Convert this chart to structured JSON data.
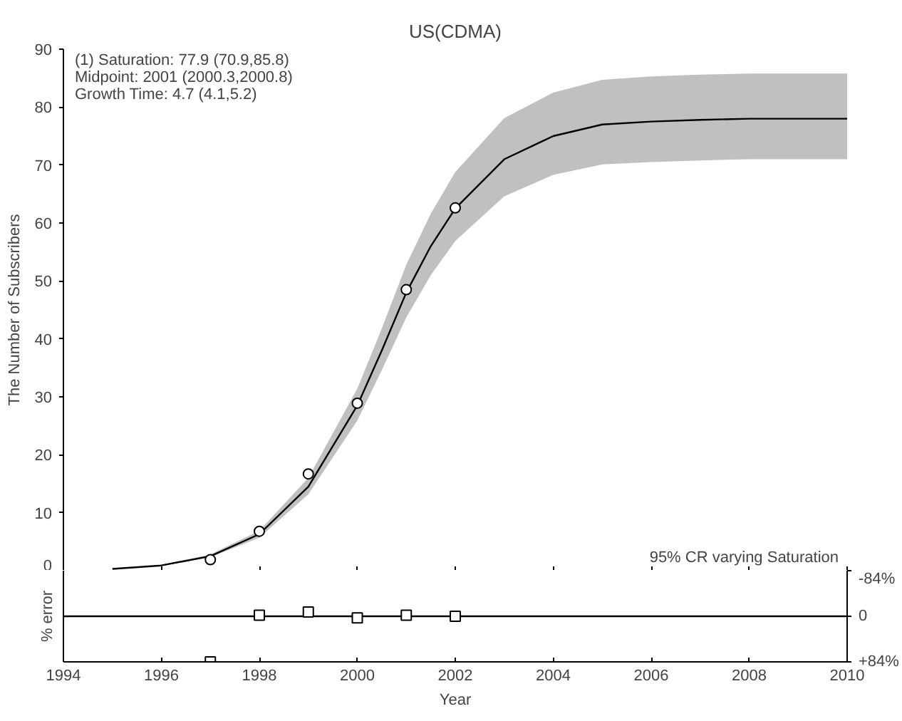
{
  "chart_data": [
    {
      "type": "line",
      "title": "US(CDMA)",
      "ylabel": "The Number of Subscribers",
      "xlim": [
        1994,
        2010
      ],
      "xticks": [
        1994,
        1996,
        1998,
        2000,
        2002,
        2004,
        2006,
        2008,
        2010
      ],
      "ylim": [
        0,
        90
      ],
      "yticks": [
        0,
        10,
        20,
        30,
        40,
        50,
        60,
        70,
        80,
        90
      ],
      "tick_labels": "y",
      "grid": false,
      "series": [
        {
          "color": "#000000",
          "marker": "none",
          "x": [
            1995,
            1996,
            1997,
            1998,
            1999,
            2000,
            2000.5,
            2001,
            2001.5,
            2002,
            2003,
            2004,
            2005,
            2006,
            2007,
            2008,
            2010
          ],
          "values": [
            0.3,
            0.9,
            2.5,
            6.3,
            14.5,
            28.5,
            38,
            48,
            56,
            62.5,
            71,
            75,
            77,
            77.5,
            77.8,
            78,
            78
          ],
          "lower": [
            0.3,
            0.8,
            2.3,
            5.7,
            13.2,
            25.9,
            34.6,
            43.7,
            51,
            56.9,
            64.6,
            68.3,
            70.1,
            70.5,
            70.8,
            71,
            71
          ],
          "upper": [
            0.3,
            1.0,
            2.8,
            6.9,
            16,
            31.4,
            41.8,
            52.8,
            61.6,
            68.8,
            78.1,
            82.5,
            84.7,
            85.3,
            85.6,
            85.8,
            85.8
          ]
        },
        {
          "type": "scatter",
          "color": "#000000",
          "marker": "circle",
          "x": [
            1997,
            1998,
            1999,
            2000,
            2001,
            2002
          ],
          "values": [
            1.9,
            6.8,
            16.7,
            28.9,
            48.5,
            62.6
          ]
        }
      ],
      "annotations": [
        "(1) Saturation:    77.9   (70.9,85.8)",
        "      Midpoint:      2001   (2000.3,2000.8)",
        "      Growth Time: 4.7     (4.1,5.2)",
        "95% CR varying Saturation"
      ]
    },
    {
      "type": "scatter",
      "xlabel": "Year",
      "ylabel": "% error",
      "xlim": [
        1994,
        2010
      ],
      "xticks": [
        1994,
        1996,
        1998,
        2000,
        2002,
        2004,
        2006,
        2008,
        2010
      ],
      "ylim": [
        84,
        -84
      ],
      "yticks": [
        {
          "value": -84,
          "label": "-84%"
        },
        0,
        {
          "value": 84,
          "label": "+84%"
        }
      ],
      "grid": false,
      "ref_lines": [
        {
          "axis": "y",
          "value": 0,
          "label": null,
          "color": "#000000"
        }
      ],
      "series": [
        {
          "color": "#000000",
          "marker": "square",
          "x": [
            1997,
            1998,
            1999,
            2000,
            2001,
            2002
          ],
          "values": [
            84,
            -2,
            -8,
            3,
            -2,
            0
          ]
        }
      ]
    }
  ]
}
